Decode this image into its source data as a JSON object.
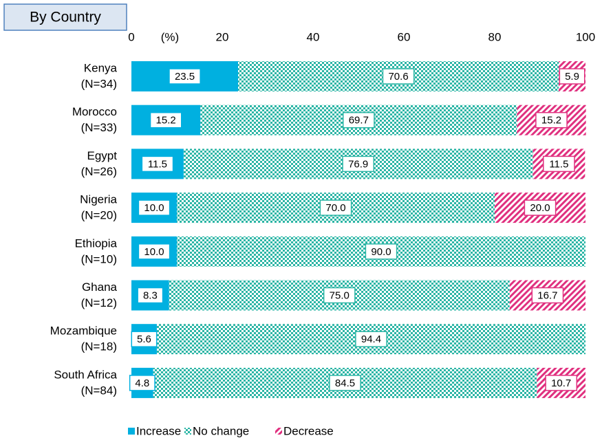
{
  "chart_data": {
    "type": "stacked_barh",
    "tab_label": "By Country",
    "axis_unit_label": "(%)",
    "categories": [
      "Kenya",
      "Morocco",
      "Egypt",
      "Nigeria",
      "Ethiopia",
      "Ghana",
      "Mozambique",
      "South Africa"
    ],
    "sample_sizes": [
      "(N=34)",
      "(N=33)",
      "(N=26)",
      "(N=20)",
      "(N=10)",
      "(N=12)",
      "(N=18)",
      "(N=84)"
    ],
    "series": [
      {
        "name": "Increase",
        "color": "#00b0e0",
        "fill": "solid",
        "values": [
          23.5,
          15.2,
          11.5,
          10,
          10,
          8.3,
          5.6,
          4.8
        ],
        "value_labels": [
          "23.5",
          "15.2",
          "11.5",
          "10.0",
          "10.0",
          "8.3",
          "5.6",
          "4.8"
        ]
      },
      {
        "name": "No change",
        "color": "#2bb5a5",
        "fill": "checker",
        "values": [
          70.6,
          69.7,
          76.9,
          70,
          90,
          75,
          94.4,
          84.5
        ],
        "value_labels": [
          "70.6",
          "69.7",
          "76.9",
          "70.0",
          "90.0",
          "75.0",
          "94.4",
          "84.5"
        ]
      },
      {
        "name": "Decrease",
        "color": "#e0307f",
        "fill": "hatch",
        "values": [
          5.9,
          15.2,
          11.5,
          20,
          0,
          16.7,
          0,
          10.7
        ],
        "value_labels": [
          "5.9",
          "15.2",
          "11.5",
          "20.0",
          null,
          "16.7",
          null,
          "10.7"
        ]
      }
    ],
    "xlim": [
      0,
      100
    ],
    "xticks": [
      0,
      20,
      40,
      60,
      80,
      100
    ]
  }
}
